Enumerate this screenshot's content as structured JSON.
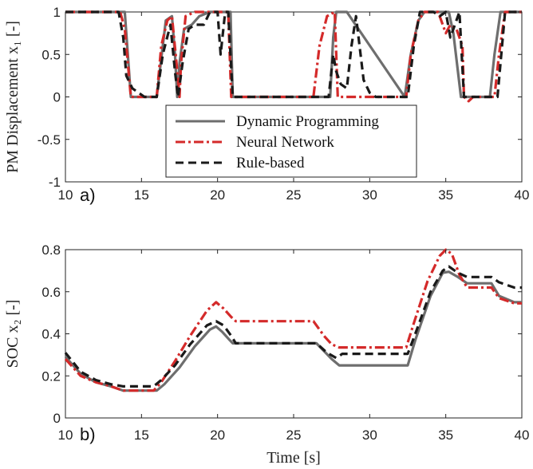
{
  "chart_data": [
    {
      "type": "line",
      "panel": "a)",
      "title": "",
      "xlabel": "",
      "ylabel": "PM Displacement x₁ [-]",
      "xlim": [
        10,
        40
      ],
      "ylim": [
        -1,
        1
      ],
      "xticks": [
        10,
        15,
        20,
        25,
        30,
        35,
        40
      ],
      "yticks": [
        -1,
        -0.5,
        0,
        0.5,
        1
      ],
      "ytick_labels": [
        "-1",
        "-0.5",
        "0",
        "0.5",
        "1"
      ],
      "grid": false,
      "legend": {
        "placement": "lower-center",
        "entries": [
          "Dynamic Programming",
          "Neural Network",
          "Rule-based"
        ]
      },
      "series": [
        {
          "name": "Dynamic Programming",
          "color": "#6e6e6e",
          "style": "solid",
          "x": [
            10,
            13.9,
            14.3,
            14.6,
            15,
            16,
            16.2,
            16.6,
            17,
            17.2,
            17.35,
            17.5,
            17.8,
            18.3,
            18.8,
            19.5,
            20.5,
            20.85,
            21.0,
            24,
            27.4,
            27.6,
            27.8,
            28.5,
            32.3,
            32.7,
            33.2,
            33.6,
            34,
            34.5,
            34.9,
            35.2,
            35.5,
            35.8,
            36.0,
            36.3,
            37.5,
            37.9,
            38.2,
            38.6,
            40
          ],
          "y": [
            1,
            1,
            0,
            0,
            0,
            0,
            0.3,
            0.9,
            0.95,
            0.5,
            0,
            0.4,
            0.8,
            0.85,
            0.95,
            1,
            1,
            1,
            0,
            0,
            0,
            0.7,
            1,
            1,
            0,
            0.5,
            0.9,
            1,
            1,
            1,
            1,
            1,
            0.75,
            0.3,
            0,
            0,
            0,
            0,
            0.5,
            1,
            1
          ]
        },
        {
          "name": "Neural Network",
          "color": "#d42a2a",
          "style": "dashdot",
          "x": [
            10,
            13.6,
            13.9,
            14.3,
            16.0,
            16.3,
            16.7,
            17.0,
            17.3,
            17.5,
            17.6,
            17.9,
            18.5,
            19.5,
            20.7,
            20.9,
            21.0,
            26.3,
            26.7,
            27.2,
            27.7,
            27.9,
            28.5,
            32.4,
            32.7,
            33.2,
            33.6,
            34.5,
            34.8,
            35.0,
            35.3,
            35.7,
            36.1,
            36.2,
            36.5,
            36.8,
            38.2,
            38.5,
            38.9,
            40
          ],
          "y": [
            1,
            1,
            0.8,
            0,
            0,
            0.6,
            0.9,
            0.95,
            0.4,
            0,
            0.4,
            0.95,
            1,
            1,
            1,
            0,
            0,
            0,
            0.6,
            0.95,
            1,
            0,
            0,
            0,
            0.5,
            0.9,
            1,
            1,
            0.85,
            0.75,
            0.85,
            0.8,
            0.6,
            0,
            -0.05,
            0,
            0,
            0.5,
            1,
            1
          ]
        },
        {
          "name": "Rule-based",
          "color": "#1a1a1a",
          "style": "dashed",
          "x": [
            10,
            13.5,
            13.8,
            14.0,
            14.4,
            14.8,
            15.2,
            16.0,
            16.4,
            16.9,
            17.2,
            17.4,
            17.7,
            18.1,
            18.5,
            19.1,
            19.5,
            20.0,
            20.2,
            20.5,
            20.7,
            21.0,
            26.5,
            27.3,
            27.6,
            27.8,
            28.1,
            28.5,
            28.8,
            29.1,
            29.3,
            29.6,
            30.0,
            30.4,
            32.5,
            32.9,
            33.3,
            34.2,
            34.6,
            35.0,
            35.3,
            35.7,
            35.9,
            36.2,
            38.4,
            38.6,
            38.9,
            40
          ],
          "y": [
            1,
            1,
            0.7,
            0.25,
            0.1,
            0.05,
            0,
            0,
            0.5,
            0.85,
            0.3,
            0,
            0.4,
            0.8,
            0.85,
            0.85,
            1,
            1,
            0.5,
            1,
            1,
            0,
            0,
            0,
            0.5,
            0.3,
            0.15,
            0.1,
            0.6,
            0.95,
            0.65,
            0.2,
            0.05,
            0,
            0,
            0.6,
            1,
            1,
            0.95,
            1,
            0.7,
            0.9,
            1,
            0,
            0,
            0.4,
            1,
            1
          ]
        }
      ]
    },
    {
      "type": "line",
      "panel": "b)",
      "title": "",
      "xlabel": "Time [s]",
      "ylabel": "SOC x₂ [-]",
      "xlim": [
        10,
        40
      ],
      "ylim": [
        0,
        0.8
      ],
      "xticks": [
        10,
        15,
        20,
        25,
        30,
        35,
        40
      ],
      "yticks": [
        0,
        0.2,
        0.4,
        0.6,
        0.8
      ],
      "ytick_labels": [
        "0",
        "0.2",
        "0.4",
        "0.6",
        "0.8"
      ],
      "grid": false,
      "series": [
        {
          "name": "Dynamic Programming",
          "color": "#6e6e6e",
          "style": "solid",
          "x": [
            10,
            11,
            12,
            13,
            13.8,
            14.5,
            16.0,
            16.5,
            17.5,
            18.5,
            19.5,
            19.9,
            20.3,
            20.8,
            21.0,
            22,
            26.5,
            27.5,
            28,
            32,
            32.5,
            33,
            34,
            34.8,
            35.2,
            35.8,
            36.4,
            38,
            38.5,
            39.5,
            40
          ],
          "y": [
            0.29,
            0.21,
            0.17,
            0.15,
            0.13,
            0.13,
            0.13,
            0.16,
            0.24,
            0.34,
            0.42,
            0.435,
            0.41,
            0.37,
            0.355,
            0.355,
            0.355,
            0.28,
            0.25,
            0.25,
            0.25,
            0.37,
            0.58,
            0.69,
            0.695,
            0.67,
            0.64,
            0.64,
            0.58,
            0.55,
            0.55
          ]
        },
        {
          "name": "Neural Network",
          "color": "#d42a2a",
          "style": "dashdot",
          "x": [
            10,
            11,
            12,
            13,
            13.8,
            14.5,
            15.8,
            16.3,
            17.2,
            18.2,
            19.3,
            19.9,
            20.4,
            20.9,
            21.2,
            22,
            26.3,
            27.0,
            27.5,
            28,
            32.4,
            32.9,
            33.8,
            34.6,
            35.0,
            35.4,
            35.9,
            36.4,
            38.0,
            38.5,
            39.5,
            40
          ],
          "y": [
            0.28,
            0.2,
            0.17,
            0.15,
            0.13,
            0.13,
            0.13,
            0.17,
            0.27,
            0.39,
            0.51,
            0.55,
            0.52,
            0.48,
            0.46,
            0.46,
            0.46,
            0.39,
            0.35,
            0.335,
            0.335,
            0.45,
            0.65,
            0.77,
            0.8,
            0.78,
            0.68,
            0.62,
            0.62,
            0.57,
            0.545,
            0.545
          ]
        },
        {
          "name": "Rule-based",
          "color": "#1a1a1a",
          "style": "dashed",
          "x": [
            10,
            11,
            12,
            13,
            13.8,
            14.5,
            15.8,
            16.3,
            17.2,
            18.2,
            19.3,
            19.9,
            20.4,
            20.9,
            21.2,
            22,
            26.5,
            27.2,
            27.8,
            28.2,
            32.5,
            33,
            34,
            34.8,
            35.2,
            35.8,
            36.4,
            38,
            38.5,
            39.5,
            40
          ],
          "y": [
            0.31,
            0.22,
            0.18,
            0.16,
            0.15,
            0.15,
            0.15,
            0.18,
            0.25,
            0.35,
            0.44,
            0.46,
            0.44,
            0.39,
            0.355,
            0.355,
            0.355,
            0.31,
            0.285,
            0.305,
            0.305,
            0.4,
            0.6,
            0.7,
            0.72,
            0.69,
            0.67,
            0.67,
            0.645,
            0.62,
            0.62
          ]
        }
      ]
    }
  ]
}
